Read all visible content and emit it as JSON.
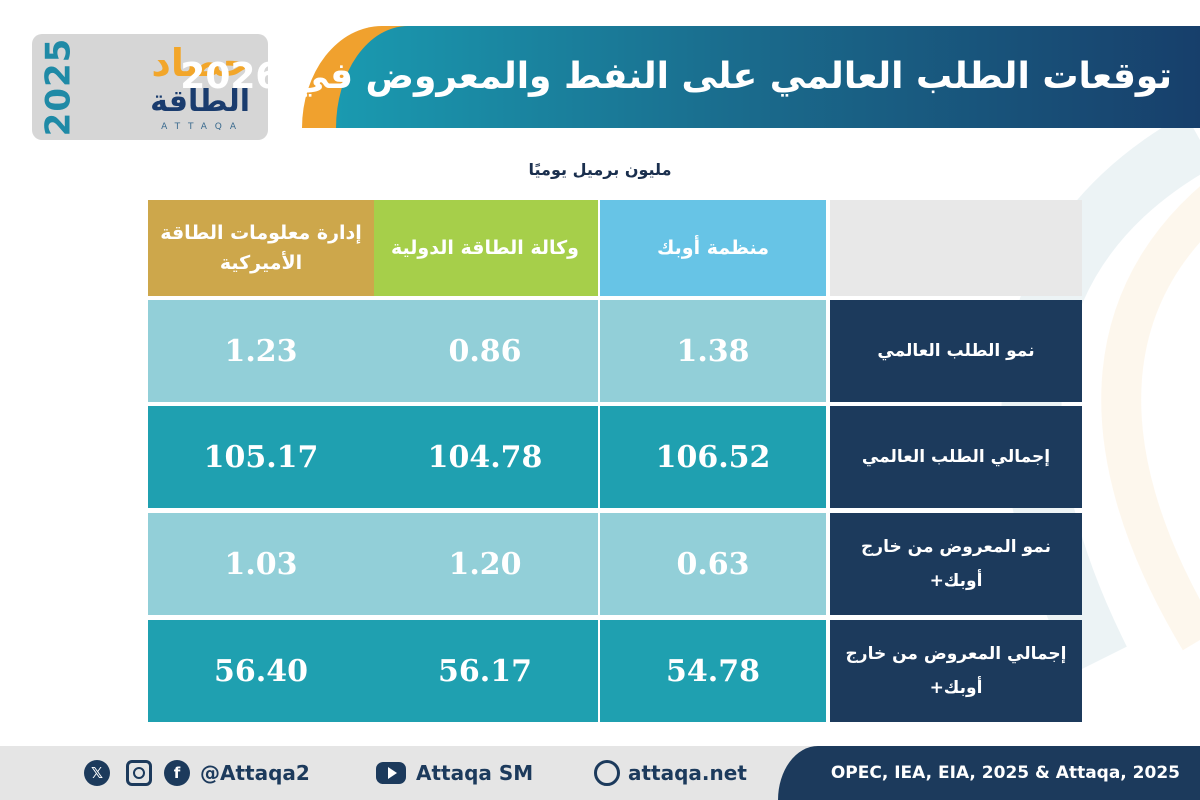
{
  "header": {
    "title": "توقعات الطلب العالمي على النفط والمعروض في 2026",
    "logo": {
      "year": "2025",
      "name_top": "حصاد",
      "name_bottom": "الطاقة",
      "latin": "ATTAQA"
    }
  },
  "unit_label": "مليون برميل يوميًا",
  "chart_data": {
    "type": "table",
    "columns": [
      "منظمة أوبك",
      "وكالة الطاقة الدولية",
      "إدارة معلومات الطاقة الأميركية"
    ],
    "column_colors": [
      "#67c4e6",
      "#a6cf4a",
      "#cda74b"
    ],
    "rows": [
      {
        "label": "نمو الطلب العالمي",
        "values": [
          "1.38",
          "0.86",
          "1.23"
        ]
      },
      {
        "label": "إجمالي الطلب العالمي",
        "values": [
          "106.52",
          "104.78",
          "105.17"
        ]
      },
      {
        "label": "نمو المعروض من خارج أوبك+",
        "values": [
          "0.63",
          "1.20",
          "1.03"
        ]
      },
      {
        "label": "إجمالي المعروض من خارج أوبك+",
        "values": [
          "54.78",
          "56.17",
          "56.40"
        ]
      }
    ]
  },
  "footer": {
    "handle": "@Attaqa2",
    "youtube": "Attaqa SM",
    "website": "attaqa.net",
    "source": "OPEC, IEA, EIA, 2025 & Attaqa, 2025",
    "icons": [
      "x-icon",
      "instagram-icon",
      "facebook-icon",
      "youtube-icon",
      "web-icon"
    ]
  }
}
